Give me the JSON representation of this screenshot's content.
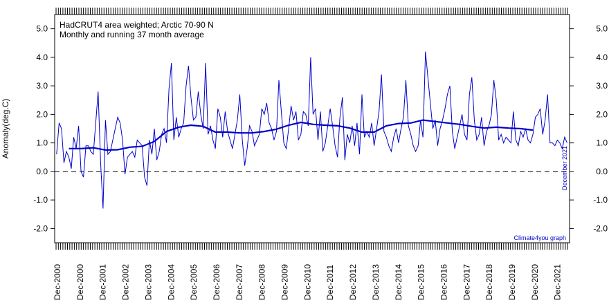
{
  "chart_data": {
    "type": "line",
    "title_lines": [
      "HadCRUT4 area weighted; Arctic 70-90 N",
      "Monthly and running 37 month average"
    ],
    "ylabel": "Anomaly(deg.C)",
    "xlabel": "",
    "ylim": [
      -2.5,
      5.5
    ],
    "xlim": [
      2000.92,
      2022.0
    ],
    "y_ticks": [
      -2.0,
      -1.0,
      0.0,
      1.0,
      2.0,
      3.0,
      4.0,
      5.0
    ],
    "y_tick_labels": [
      "-2.0",
      "-1.0",
      "0.0",
      "1.0",
      "2.0",
      "3.0",
      "4.0",
      "5.0"
    ],
    "x_tick_labels": [
      "Dec-2000",
      "Dec-2000",
      "Dec-2001",
      "Dec-2002",
      "Dec-2003",
      "Dec-2004",
      "Dec-2005",
      "Dec-2006",
      "Dec-2007",
      "Dec-2008",
      "Dec-2009",
      "Dec-2010",
      "Dec-2011",
      "Dec-2012",
      "Dec-2013",
      "Dec-2014",
      "Dec-2015",
      "Dec-2016",
      "Dec-2017",
      "Dec-2018",
      "Dec-2019",
      "Dec-2020",
      "Dec-2021"
    ],
    "side_label": "December 2021",
    "credit": "Climate4you graph",
    "zero_line": "dashed",
    "series": [
      {
        "kind": "monthly",
        "color": "#0000cc",
        "x": [
          2001.0,
          2001.1,
          2001.2,
          2001.3,
          2001.4,
          2001.5,
          2001.6,
          2001.7,
          2001.8,
          2001.9,
          2002.0,
          2002.1,
          2002.2,
          2002.3,
          2002.4,
          2002.5,
          2002.6,
          2002.7,
          2002.8,
          2002.9,
          2003.0,
          2003.1,
          2003.2,
          2003.3,
          2003.4,
          2003.5,
          2003.6,
          2003.7,
          2003.8,
          2003.9,
          2004.0,
          2004.1,
          2004.2,
          2004.3,
          2004.4,
          2004.5,
          2004.6,
          2004.7,
          2004.8,
          2004.9,
          2005.0,
          2005.1,
          2005.2,
          2005.3,
          2005.4,
          2005.5,
          2005.6,
          2005.7,
          2005.8,
          2005.9,
          2006.0,
          2006.1,
          2006.2,
          2006.3,
          2006.4,
          2006.5,
          2006.6,
          2006.7,
          2006.8,
          2006.9,
          2007.0,
          2007.1,
          2007.2,
          2007.3,
          2007.4,
          2007.5,
          2007.6,
          2007.7,
          2007.8,
          2007.9,
          2008.0,
          2008.1,
          2008.2,
          2008.3,
          2008.4,
          2008.5,
          2008.6,
          2008.7,
          2008.8,
          2008.9,
          2009.0,
          2009.1,
          2009.2,
          2009.3,
          2009.4,
          2009.5,
          2009.6,
          2009.7,
          2009.8,
          2009.9,
          2010.0,
          2010.1,
          2010.2,
          2010.3,
          2010.4,
          2010.5,
          2010.6,
          2010.7,
          2010.8,
          2010.9,
          2011.0,
          2011.1,
          2011.2,
          2011.3,
          2011.4,
          2011.5,
          2011.6,
          2011.7,
          2011.8,
          2011.9,
          2012.0,
          2012.1,
          2012.2,
          2012.3,
          2012.4,
          2012.5,
          2012.6,
          2012.7,
          2012.8,
          2012.9,
          2013.0,
          2013.1,
          2013.2,
          2013.3,
          2013.4,
          2013.5,
          2013.6,
          2013.7,
          2013.8,
          2013.9,
          2014.0,
          2014.1,
          2014.2,
          2014.3,
          2014.4,
          2014.5,
          2014.6,
          2014.7,
          2014.8,
          2014.9,
          2015.0,
          2015.1,
          2015.2,
          2015.3,
          2015.4,
          2015.5,
          2015.6,
          2015.7,
          2015.8,
          2015.9,
          2016.0,
          2016.1,
          2016.2,
          2016.3,
          2016.4,
          2016.5,
          2016.6,
          2016.7,
          2016.8,
          2016.9,
          2017.0,
          2017.1,
          2017.2,
          2017.3,
          2017.4,
          2017.5,
          2017.6,
          2017.7,
          2017.8,
          2017.9,
          2018.0,
          2018.1,
          2018.2,
          2018.3,
          2018.4,
          2018.5,
          2018.6,
          2018.7,
          2018.8,
          2018.9,
          2019.0,
          2019.1,
          2019.2,
          2019.3,
          2019.4,
          2019.5,
          2019.6,
          2019.7,
          2019.8,
          2019.9,
          2020.0,
          2020.1,
          2020.2,
          2020.3,
          2020.4,
          2020.5,
          2020.6,
          2020.7,
          2020.8,
          2020.9,
          2021.0,
          2021.1,
          2021.2,
          2021.3,
          2021.4,
          2021.5,
          2021.6,
          2021.7,
          2021.8,
          2021.9
        ],
        "values": [
          0.6,
          1.7,
          1.5,
          0.3,
          0.7,
          0.5,
          0.1,
          1.2,
          0.8,
          1.6,
          0.0,
          -0.2,
          0.9,
          0.9,
          0.7,
          0.6,
          1.7,
          2.8,
          0.3,
          -1.3,
          1.8,
          0.6,
          0.7,
          1.1,
          1.5,
          1.9,
          1.7,
          1.1,
          -0.1,
          0.5,
          0.6,
          0.7,
          0.5,
          1.1,
          1.0,
          0.9,
          -0.2,
          -0.5,
          1.1,
          0.6,
          1.5,
          0.4,
          0.7,
          1.3,
          1.5,
          1.0,
          2.9,
          3.8,
          1.1,
          1.9,
          1.2,
          1.5,
          1.7,
          3.0,
          3.7,
          2.6,
          1.8,
          1.9,
          2.8,
          2.0,
          1.5,
          3.8,
          1.3,
          1.6,
          1.1,
          0.8,
          2.2,
          1.9,
          1.2,
          2.1,
          1.4,
          1.1,
          0.8,
          1.3,
          1.8,
          2.7,
          1.1,
          0.2,
          0.8,
          1.6,
          1.4,
          0.9,
          1.1,
          1.3,
          2.2,
          2.0,
          2.4,
          1.7,
          1.5,
          1.1,
          1.4,
          3.2,
          2.1,
          1.0,
          0.8,
          1.5,
          2.3,
          1.8,
          2.1,
          1.1,
          1.3,
          2.1,
          2.0,
          1.6,
          4.0,
          2.0,
          2.2,
          1.1,
          2.1,
          0.7,
          1.0,
          1.6,
          2.2,
          1.6,
          0.9,
          0.5,
          1.9,
          2.6,
          0.4,
          1.3,
          1.0,
          1.6,
          0.9,
          1.7,
          0.6,
          2.7,
          1.2,
          1.4,
          1.2,
          1.7,
          0.9,
          1.5,
          2.1,
          3.4,
          1.4,
          1.2,
          0.9,
          0.7,
          1.2,
          1.5,
          1.0,
          1.5,
          1.9,
          3.2,
          1.6,
          1.3,
          0.9,
          0.7,
          0.9,
          1.8,
          1.2,
          4.2,
          3.3,
          2.4,
          1.5,
          1.8,
          0.9,
          1.5,
          1.8,
          2.2,
          2.7,
          3.0,
          1.4,
          0.8,
          1.2,
          1.6,
          2.0,
          1.3,
          1.1,
          2.7,
          3.3,
          1.8,
          1.1,
          1.3,
          1.9,
          0.9,
          1.4,
          1.6,
          2.0,
          3.2,
          2.5,
          1.1,
          1.3,
          1.0,
          1.2,
          1.1,
          1.0,
          2.1,
          1.1,
          0.9,
          1.4,
          1.2,
          1.5,
          1.1,
          1.0,
          1.3,
          1.9,
          2.0,
          2.2,
          1.3,
          1.8,
          2.7,
          1.0,
          1.0,
          0.9,
          1.1,
          1.0,
          0.8,
          1.2,
          1.0
        ]
      },
      {
        "kind": "running_37_month",
        "color": "#0000cc",
        "x": [
          2001.5,
          2002.0,
          2002.5,
          2003.0,
          2003.5,
          2004.0,
          2004.5,
          2005.0,
          2005.5,
          2006.0,
          2006.5,
          2007.0,
          2007.5,
          2008.0,
          2008.5,
          2009.0,
          2009.5,
          2010.0,
          2010.5,
          2011.0,
          2011.5,
          2012.0,
          2012.5,
          2013.0,
          2013.5,
          2014.0,
          2014.5,
          2015.0,
          2015.5,
          2016.0,
          2016.5,
          2017.0,
          2017.5,
          2018.0,
          2018.5,
          2019.0,
          2019.5,
          2020.0,
          2020.5
        ],
        "values": [
          0.8,
          0.8,
          0.83,
          0.75,
          0.76,
          0.85,
          0.88,
          1.05,
          1.4,
          1.55,
          1.62,
          1.58,
          1.38,
          1.38,
          1.35,
          1.35,
          1.4,
          1.48,
          1.62,
          1.72,
          1.65,
          1.62,
          1.6,
          1.52,
          1.38,
          1.38,
          1.6,
          1.68,
          1.7,
          1.8,
          1.75,
          1.7,
          1.65,
          1.58,
          1.52,
          1.55,
          1.52,
          1.5,
          1.45
        ]
      }
    ]
  }
}
